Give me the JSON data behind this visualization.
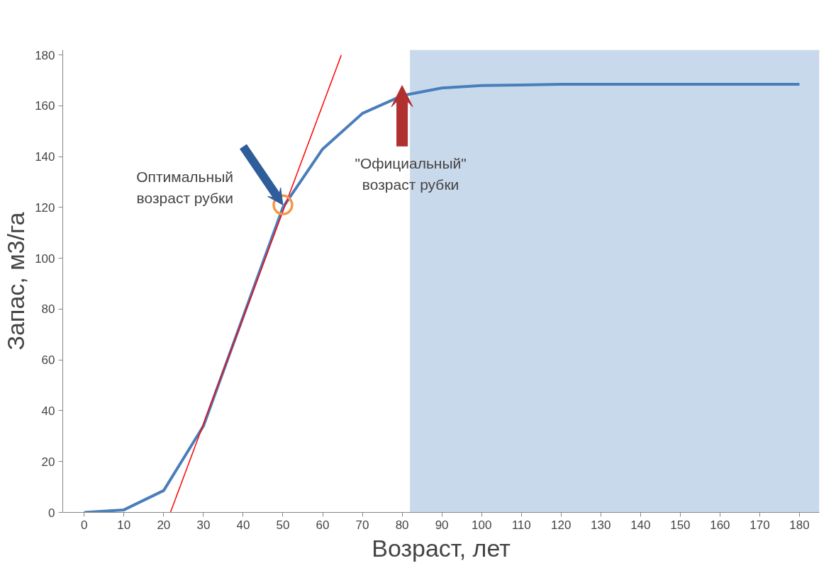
{
  "chart_data": {
    "type": "line",
    "xlabel": "Возраст, лет",
    "ylabel": "Запас, м3/га",
    "x": [
      0,
      10,
      20,
      30,
      40,
      50,
      60,
      70,
      80,
      90,
      100,
      110,
      120,
      130,
      140,
      150,
      160,
      170,
      180
    ],
    "series": [
      {
        "color": "#4a7ebb",
        "values": [
          0,
          1,
          8.6,
          34,
          77,
          120,
          143,
          157,
          164,
          167,
          168,
          168.2,
          168.5,
          168.5,
          168.5,
          168.5,
          168.5,
          168.5,
          168.5
        ]
      },
      {
        "color": "#ff0000",
        "x": [
          21.7,
          64.7
        ],
        "values": [
          0,
          180
        ]
      },
      {
        "type": "scatter",
        "color": "#f79646",
        "x": [
          50
        ],
        "values": [
          121
        ],
        "marker": "circle"
      }
    ],
    "xlim": [
      -5.4,
      185
    ],
    "ylim": [
      0,
      182
    ],
    "xticks": [
      0,
      10,
      20,
      30,
      40,
      50,
      60,
      70,
      80,
      90,
      100,
      110,
      120,
      130,
      140,
      150,
      160,
      170,
      180
    ],
    "yticks": [
      0,
      20,
      40,
      60,
      80,
      100,
      120,
      140,
      160,
      180
    ],
    "bands": [
      {
        "axis": "x",
        "from": 82,
        "to": 185,
        "color": "#c9d9ec"
      }
    ],
    "annotations": [
      "Оптимальный возраст рубки",
      "\"Официальный\" возраст рубки"
    ],
    "grid": false,
    "legend": false
  }
}
